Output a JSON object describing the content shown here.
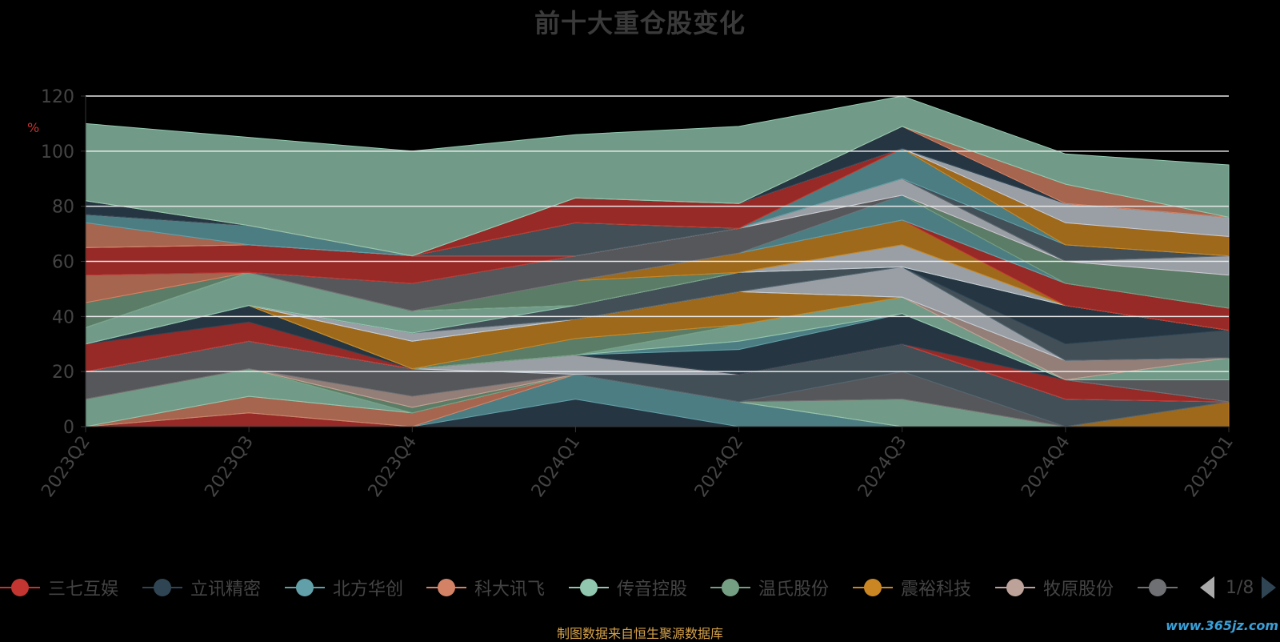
{
  "title": "前十大重仓股变化",
  "footer": "制图数据来自恒生聚源数据库",
  "watermark": "www.365jz.com",
  "pager": "1/8",
  "chart_data": {
    "type": "area",
    "ylabel": "%",
    "ylim": [
      0,
      120
    ],
    "yticks": [
      0,
      20,
      40,
      60,
      80,
      100,
      120
    ],
    "categories": [
      "2023Q2",
      "2023Q3",
      "2023Q4",
      "2024Q1",
      "2024Q2",
      "2024Q3",
      "2024Q4",
      "2025Q1"
    ],
    "grid": true,
    "stacked": true,
    "legend_position": "bottom",
    "series": [
      {
        "name": "三七互娱",
        "color": "#c23531",
        "values": [
          0,
          5,
          0,
          0,
          0,
          0,
          0,
          0
        ]
      },
      {
        "name": "立讯精密",
        "color": "#2f4554",
        "values": [
          0,
          0,
          0,
          10,
          0,
          0,
          0,
          0
        ]
      },
      {
        "name": "北方华创",
        "color": "#61a0a8",
        "values": [
          0,
          0,
          0,
          9,
          9,
          0,
          0,
          0
        ]
      },
      {
        "name": "科大讯飞",
        "color": "#d48265",
        "values": [
          0,
          6,
          5,
          0,
          0,
          0,
          0,
          0
        ]
      },
      {
        "name": "传音控股",
        "color": "#91c7ae",
        "values": [
          10,
          10,
          0,
          0,
          0,
          10,
          0,
          0
        ]
      },
      {
        "name": "温氏股份",
        "color": "#749f83",
        "values": [
          0,
          0,
          2,
          0,
          0,
          0,
          0,
          0
        ]
      },
      {
        "name": "震裕科技",
        "color": "#ca8622",
        "values": [
          0,
          0,
          0,
          0,
          0,
          0,
          0,
          9
        ]
      },
      {
        "name": "牧原股份",
        "color": "#bda29a",
        "values": [
          0,
          0,
          4,
          0,
          0,
          0,
          0,
          0
        ]
      },
      {
        "name": "",
        "color": "#6e7074",
        "values": [
          10,
          10,
          10,
          0,
          0,
          10,
          0,
          0
        ]
      },
      {
        "color": "#546570",
        "values": [
          0,
          0,
          0,
          0,
          10,
          10,
          10,
          0
        ]
      },
      {
        "color": "#c4ccd3",
        "values": [
          0,
          0,
          0,
          7,
          0,
          0,
          0,
          0
        ]
      },
      {
        "color": "#c23531",
        "values": [
          10,
          7,
          0,
          0,
          0,
          0,
          7,
          0
        ]
      },
      {
        "color": "#2f4554",
        "values": [
          0,
          6,
          0,
          0,
          9,
          11,
          0,
          0
        ]
      },
      {
        "color": "#61a0a8",
        "values": [
          0,
          0,
          0,
          0,
          3,
          0,
          0,
          0
        ]
      },
      {
        "color": "#6e7074",
        "values": [
          0,
          0,
          0,
          0,
          0,
          0,
          0,
          8
        ]
      },
      {
        "color": "#91c7ae",
        "values": [
          0,
          0,
          0,
          0,
          6,
          6,
          0,
          8
        ]
      },
      {
        "color": "#749f83",
        "values": [
          0,
          0,
          0,
          6,
          0,
          0,
          0,
          0
        ]
      },
      {
        "color": "#ca8622",
        "values": [
          0,
          0,
          10,
          7,
          12,
          0,
          0,
          0
        ]
      },
      {
        "color": "#bda29a",
        "values": [
          0,
          0,
          0,
          0,
          0,
          0,
          7,
          0
        ]
      },
      {
        "color": "#c4ccd3",
        "values": [
          0,
          0,
          3,
          0,
          0,
          11,
          0,
          0
        ]
      },
      {
        "color": "#546570",
        "values": [
          0,
          0,
          0,
          5,
          7,
          0,
          6,
          10
        ]
      },
      {
        "color": "#2f4554",
        "values": [
          0,
          0,
          0,
          0,
          0,
          0,
          14,
          0
        ]
      },
      {
        "color": "#91c7ae",
        "values": [
          6,
          12,
          8,
          0,
          0,
          0,
          0,
          0
        ]
      },
      {
        "color": "#c4ccd3",
        "values": [
          0,
          0,
          0,
          0,
          0,
          8,
          0,
          0
        ]
      },
      {
        "color": "#749f83",
        "values": [
          9,
          0,
          0,
          9,
          0,
          0,
          0,
          0
        ]
      },
      {
        "color": "#ca8622",
        "values": [
          0,
          0,
          0,
          0,
          7,
          9,
          0,
          0
        ]
      },
      {
        "color": "#c23531",
        "values": [
          0,
          0,
          0,
          0,
          0,
          0,
          8,
          8
        ]
      },
      {
        "color": "#d48265",
        "values": [
          10,
          0,
          0,
          0,
          0,
          0,
          0,
          0
        ]
      },
      {
        "color": "#61a0a8",
        "values": [
          0,
          0,
          0,
          0,
          0,
          9,
          0,
          0
        ]
      },
      {
        "color": "#6e7074",
        "values": [
          0,
          0,
          10,
          9,
          9,
          0,
          0,
          0
        ]
      },
      {
        "color": "#749f83",
        "values": [
          0,
          0,
          0,
          0,
          0,
          0,
          8,
          12
        ]
      },
      {
        "color": "#c23531",
        "values": [
          10,
          10,
          10,
          0,
          0,
          0,
          0,
          0
        ]
      },
      {
        "color": "#c4ccd3",
        "values": [
          0,
          0,
          0,
          0,
          0,
          6,
          0,
          7
        ]
      },
      {
        "color": "#d48265",
        "values": [
          9,
          0,
          0,
          0,
          0,
          0,
          0,
          0
        ]
      },
      {
        "color": "#546570",
        "values": [
          0,
          0,
          0,
          12,
          0,
          0,
          6,
          0
        ]
      },
      {
        "color": "#61a0a8",
        "values": [
          3,
          7,
          0,
          0,
          0,
          11,
          0,
          0
        ]
      },
      {
        "color": "#ca8622",
        "values": [
          0,
          0,
          0,
          0,
          0,
          0,
          8,
          7
        ]
      },
      {
        "color": "#c23531",
        "values": [
          0,
          0,
          0,
          9,
          9,
          0,
          0,
          0
        ]
      },
      {
        "color": "#c4ccd3",
        "values": [
          0,
          0,
          0,
          0,
          0,
          0,
          7,
          7
        ]
      },
      {
        "color": "#2f4554",
        "values": [
          5,
          0,
          0,
          0,
          0,
          8,
          0,
          0
        ]
      },
      {
        "color": "#d48265",
        "values": [
          0,
          0,
          0,
          0,
          0,
          0,
          7,
          0
        ]
      },
      {
        "color": "#91c7ae",
        "values": [
          28,
          32,
          38,
          23,
          28,
          11,
          11,
          19
        ]
      }
    ]
  }
}
